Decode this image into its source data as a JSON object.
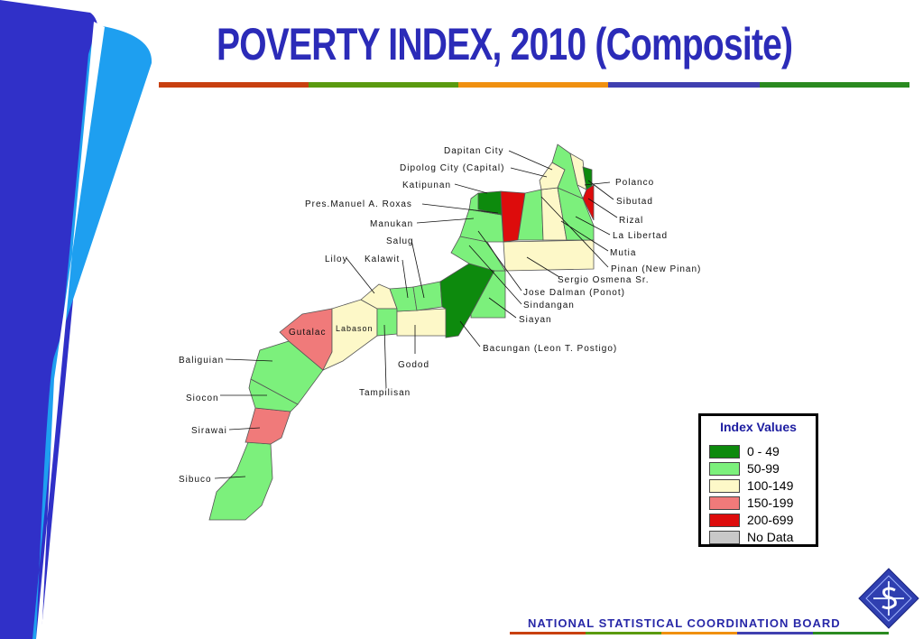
{
  "title": "POVERTY INDEX, 2010 (Composite)",
  "colors": {
    "title_blue": "#2b2bb8",
    "rule": [
      "#c84010",
      "#5a9a10",
      "#f09010",
      "#4040b0",
      "#2a8a20"
    ]
  },
  "legend": {
    "title": "Index Values",
    "items": [
      {
        "label": "0 - 49",
        "color": "#0d8a0d"
      },
      {
        "label": "50-99",
        "color": "#7cf07c"
      },
      {
        "label": "100-149",
        "color": "#fdf8c8"
      },
      {
        "label": "150-199",
        "color": "#f07a7a"
      },
      {
        "label": "200-699",
        "color": "#dd0c0c"
      },
      {
        "label": "No Data",
        "color": "#c8c8c8"
      }
    ]
  },
  "map": {
    "municipalities": [
      {
        "name": "Dapitan City",
        "class": "50-99"
      },
      {
        "name": "Dipolog City (Capital)",
        "class": "100-149"
      },
      {
        "name": "Katipunan",
        "class": "0 - 49"
      },
      {
        "name": "Pres.Manuel A. Roxas",
        "class": "200-699"
      },
      {
        "name": "Manukan",
        "class": "50-99"
      },
      {
        "name": "Salug",
        "class": "50-99"
      },
      {
        "name": "Liloy",
        "class": "100-149"
      },
      {
        "name": "Kalawit",
        "class": "50-99"
      },
      {
        "name": "Gutalac",
        "class": "150-199"
      },
      {
        "name": "Labason",
        "class": "100-149"
      },
      {
        "name": "Baliguian",
        "class": "50-99"
      },
      {
        "name": "Siocon",
        "class": "50-99"
      },
      {
        "name": "Sirawai",
        "class": "150-199"
      },
      {
        "name": "Sibuco",
        "class": "50-99"
      },
      {
        "name": "Tampilisan",
        "class": "50-99"
      },
      {
        "name": "Godod",
        "class": "100-149"
      },
      {
        "name": "Polanco",
        "class": "50-99"
      },
      {
        "name": "Sibutad",
        "class": "0 - 49"
      },
      {
        "name": "Rizal",
        "class": "200-699"
      },
      {
        "name": "La Libertad",
        "class": "50-99"
      },
      {
        "name": "Mutia",
        "class": "50-99"
      },
      {
        "name": "Pinan (New Pinan)",
        "class": "50-99"
      },
      {
        "name": "Sergio Osmena Sr.",
        "class": "100-149"
      },
      {
        "name": "Jose Dalman (Ponot)",
        "class": "50-99"
      },
      {
        "name": "Sindangan",
        "class": "50-99"
      },
      {
        "name": "Siayan",
        "class": "50-99"
      },
      {
        "name": "Bacungan (Leon T. Postigo)",
        "class": "0 - 49"
      }
    ]
  },
  "labels": {
    "dapitan": "Dapitan City",
    "dipolog": "Dipolog City (Capital)",
    "katipunan": "Katipunan",
    "roxas": "Pres.Manuel A. Roxas",
    "manukan": "Manukan",
    "salug": "Salug",
    "liloy": "Liloy",
    "kalawit": "Kalawit",
    "gutalac": "Gutalac",
    "labason": "Labason",
    "baliguian": "Baliguian",
    "siocon": "Siocon",
    "sirawai": "Sirawai",
    "sibuco": "Sibuco",
    "tampilisan": "Tampilisan",
    "godod": "Godod",
    "polanco": "Polanco",
    "sibutad": "Sibutad",
    "rizal": "Rizal",
    "lalibertad": "La Libertad",
    "mutia": "Mutia",
    "pinan": "Pinan (New Pinan)",
    "osmena": "Sergio Osmena Sr.",
    "dalman": "Jose Dalman (Ponot)",
    "sindangan": "Sindangan",
    "siayan": "Siayan",
    "bacungan": "Bacungan (Leon T. Postigo)"
  },
  "footer": "NATIONAL  STATISTICAL  COORDINATION  BOARD",
  "logo_icon": "nscb-diamond-logo-icon"
}
